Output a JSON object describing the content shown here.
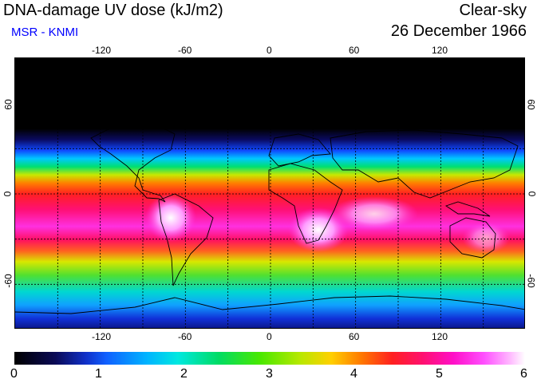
{
  "header": {
    "title": "DNA-damage UV dose (kJ/m2)",
    "subtitle": "MSR - KNMI",
    "condition": "Clear-sky",
    "date": "26 December 1966"
  },
  "map": {
    "lon_ticks_top": [
      "-120",
      "-60",
      "0",
      "60",
      "120"
    ],
    "lon_ticks_bottom": [
      "-120",
      "-60",
      "0",
      "60",
      "120"
    ],
    "lat_ticks_left": [
      "60",
      "0",
      "-60"
    ],
    "lat_ticks_right": [
      "60",
      "0",
      "-60"
    ],
    "lon_range": [
      -180,
      180
    ],
    "lat_range": [
      -90,
      90
    ],
    "gridline_lons": [
      -150,
      -120,
      -90,
      -60,
      -30,
      0,
      30,
      60,
      90,
      120,
      150
    ],
    "gridline_lats": [
      -60,
      -30,
      0,
      30,
      60
    ]
  },
  "colorbar": {
    "labels": [
      "0",
      "1",
      "2",
      "3",
      "4",
      "5",
      "6"
    ],
    "min": 0,
    "max": 6
  },
  "colors": {
    "title": "#000000",
    "subtitle": "#0000ff",
    "grid": "#000000"
  }
}
